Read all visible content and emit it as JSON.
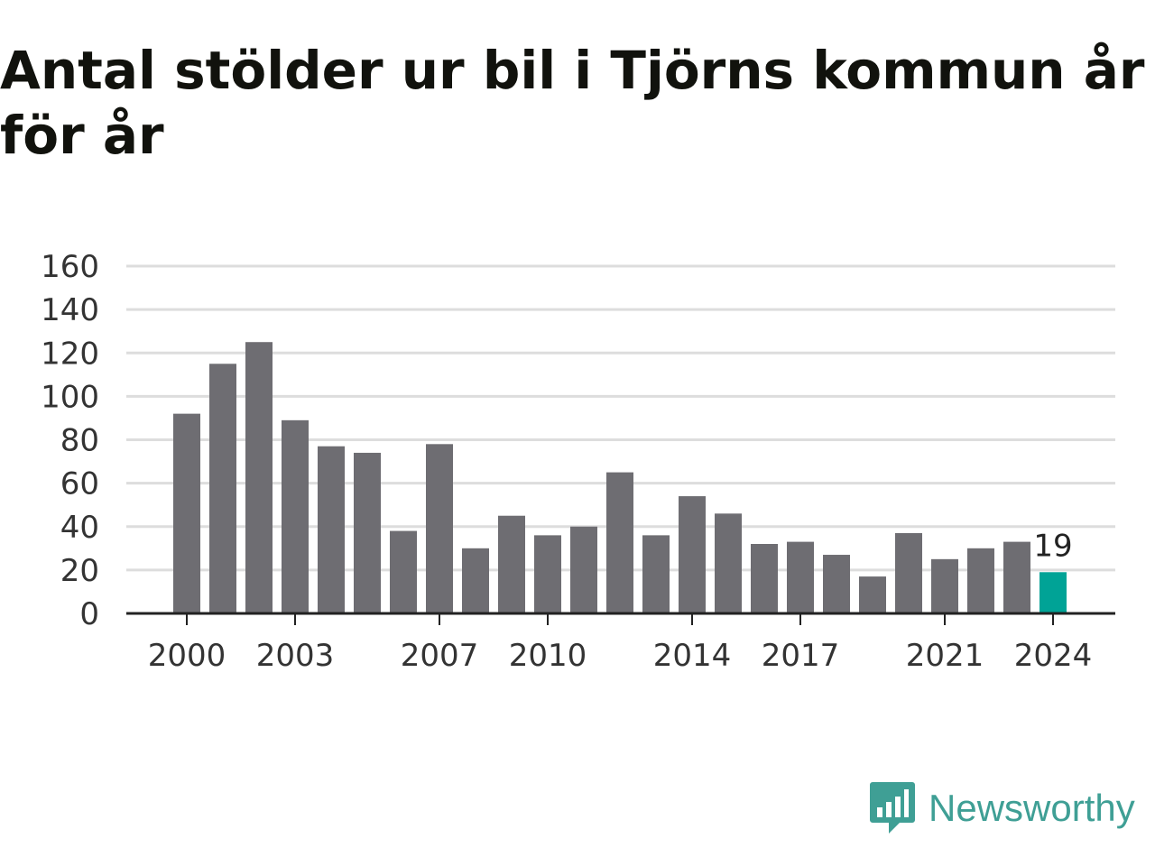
{
  "title": "Antal stölder ur bil i Tjörns kommun år för år",
  "brand": {
    "name": "Newsworthy",
    "icon": "newsworthy-logo-icon",
    "color": "#3f9f95"
  },
  "colors": {
    "bar": "#6e6d72",
    "highlight": "#00a396",
    "grid": "#dddddd",
    "axis": "#222222"
  },
  "chart_data": {
    "type": "bar",
    "title": "Antal stölder ur bil i Tjörns kommun år för år",
    "xlabel": "",
    "ylabel": "",
    "categories": [
      "2000",
      "2001",
      "2002",
      "2003",
      "2004",
      "2005",
      "2006",
      "2007",
      "2008",
      "2009",
      "2010",
      "2011",
      "2012",
      "2013",
      "2014",
      "2015",
      "2016",
      "2017",
      "2018",
      "2019",
      "2020",
      "2021",
      "2022",
      "2023",
      "2024"
    ],
    "values": [
      92,
      115,
      125,
      89,
      77,
      74,
      38,
      78,
      30,
      45,
      36,
      40,
      65,
      36,
      54,
      46,
      32,
      33,
      27,
      17,
      37,
      25,
      30,
      33,
      19
    ],
    "x_tick_labels": [
      "2000",
      "2003",
      "2007",
      "2010",
      "2014",
      "2017",
      "2021",
      "2024"
    ],
    "y_ticks": [
      0,
      20,
      40,
      60,
      80,
      100,
      120,
      140,
      160
    ],
    "ylim": [
      0,
      160
    ],
    "grid": true,
    "highlight": {
      "category": "2024",
      "label": "19"
    }
  }
}
